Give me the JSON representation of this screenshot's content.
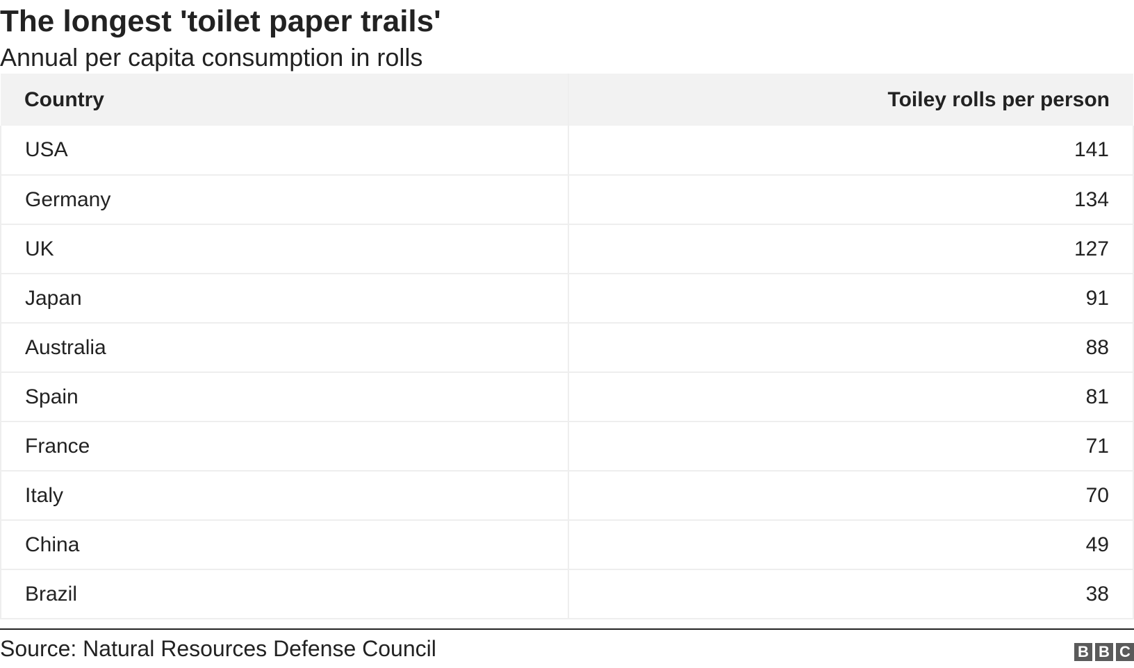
{
  "chart_data": {
    "type": "table",
    "title": "The longest 'toilet paper trails'",
    "subtitle": "Annual per capita consumption in rolls",
    "columns": [
      "Country",
      "Toiley rolls per person"
    ],
    "rows": [
      {
        "country": "USA",
        "value": "141"
      },
      {
        "country": "Germany",
        "value": "134"
      },
      {
        "country": "UK",
        "value": "127"
      },
      {
        "country": "Japan",
        "value": "91"
      },
      {
        "country": "Australia",
        "value": "88"
      },
      {
        "country": "Spain",
        "value": "81"
      },
      {
        "country": "France",
        "value": "71"
      },
      {
        "country": "Italy",
        "value": "70"
      },
      {
        "country": "China",
        "value": "49"
      },
      {
        "country": "Brazil",
        "value": "38"
      }
    ],
    "source": "Source: Natural Resources Defense Council"
  },
  "logo": {
    "letters": [
      "B",
      "B",
      "C"
    ]
  },
  "colors": {
    "header_background": "#f2f2f2",
    "text": "#222222",
    "row_divider": "#eeeeee",
    "logo_block": "#5a5a5a"
  }
}
